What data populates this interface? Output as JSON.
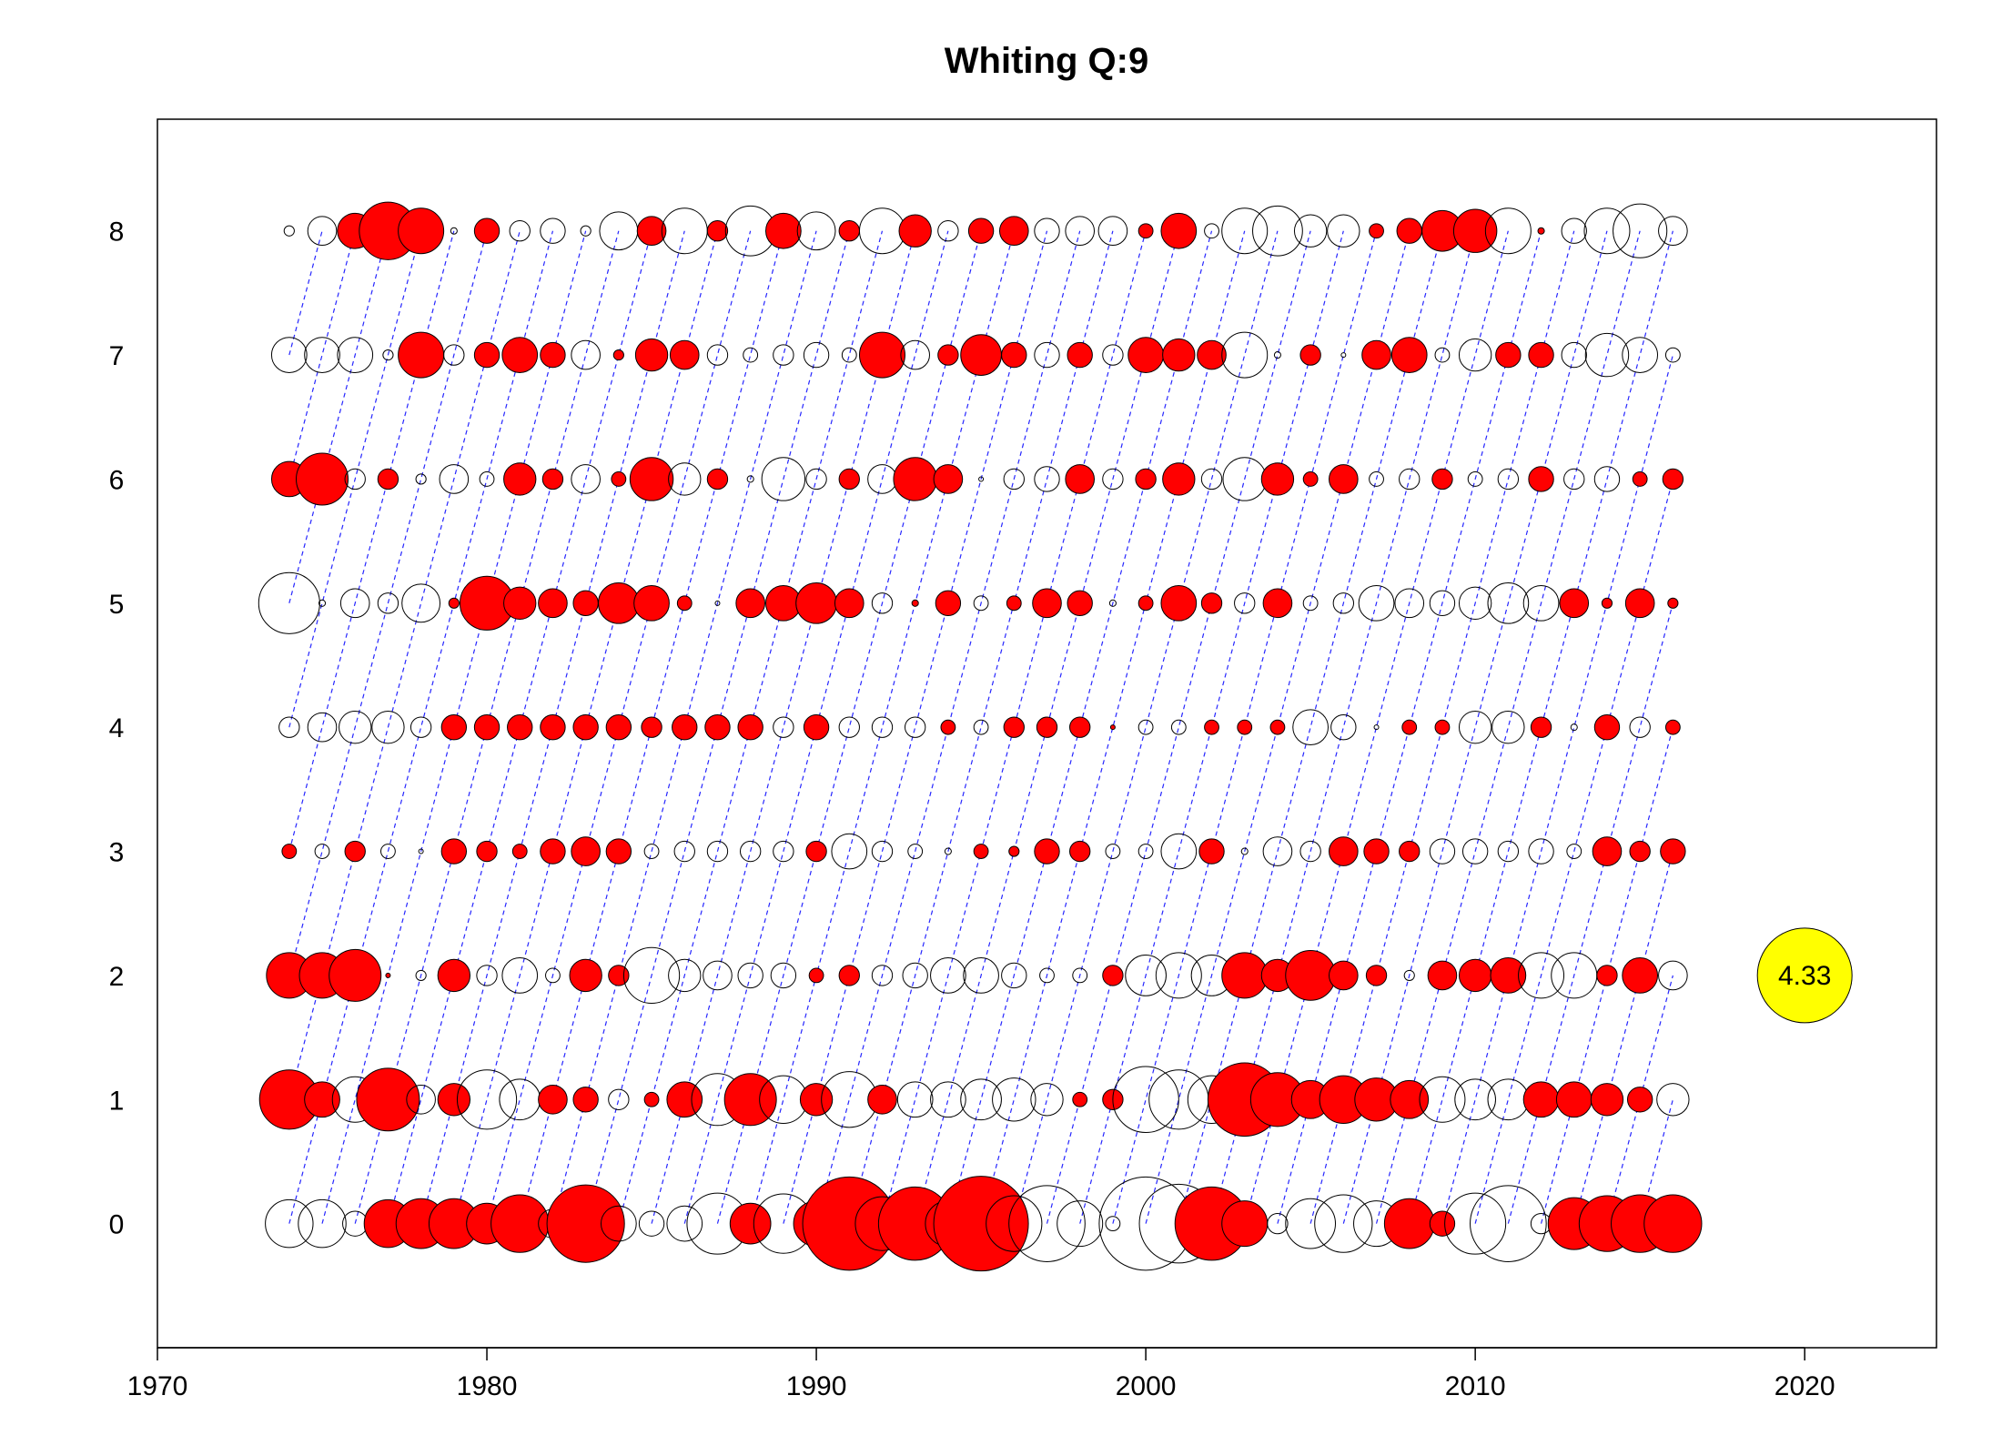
{
  "chart_data": {
    "type": "scatter",
    "subtype": "bubble",
    "title": "Whiting Q:9",
    "xlabel": "",
    "ylabel": "",
    "xlim": [
      1970,
      2024
    ],
    "ylim": [
      -1,
      8.9
    ],
    "x_ticks": [
      1970,
      1980,
      1990,
      2000,
      2010,
      2020
    ],
    "y_ticks": [
      0,
      1,
      2,
      3,
      4,
      5,
      6,
      7,
      8
    ],
    "years": [
      1974,
      1975,
      1976,
      1977,
      1978,
      1979,
      1980,
      1981,
      1982,
      1983,
      1984,
      1985,
      1986,
      1987,
      1988,
      1989,
      1990,
      1991,
      1992,
      1993,
      1994,
      1995,
      1996,
      1997,
      1998,
      1999,
      2000,
      2001,
      2002,
      2003,
      2004,
      2005,
      2006,
      2007,
      2008,
      2009,
      2010,
      2011,
      2012,
      2013,
      2014,
      2015,
      2016
    ],
    "ages": [
      0,
      1,
      2,
      3,
      4,
      5,
      6,
      7,
      8
    ],
    "encoding_note": "Positive residuals are drawn as filled red circles, negative residuals as open circles; circle area scales with absolute value.",
    "positive_color": "#ff0000",
    "negative_color": "#ffffff",
    "cohort_line_color": "#0000ff",
    "residuals": {
      "0": [
        -1.1,
        -1.1,
        -0.3,
        1.1,
        1.2,
        1.2,
        0.8,
        1.6,
        -0.4,
        2.9,
        -0.6,
        -0.3,
        -0.6,
        -1.8,
        0.8,
        -1.7,
        1.0,
        4.2,
        -1.4,
        2.6,
        -1.0,
        4.33,
        -1.5,
        -2.8,
        -1.0,
        -0.1,
        -4.2,
        -3.0,
        2.6,
        1.0,
        -0.2,
        -1.2,
        -1.6,
        -1.0,
        1.2,
        0.3,
        -1.8,
        -2.8,
        -0.2,
        1.3,
        1.5,
        1.6,
        1.6
      ],
      "1": [
        1.7,
        0.6,
        -1.0,
        1.9,
        -0.4,
        0.5,
        -1.7,
        -0.8,
        0.4,
        0.3,
        -0.2,
        0.1,
        0.6,
        -1.3,
        1.3,
        -1.1,
        0.5,
        -1.5,
        0.4,
        -0.6,
        -0.6,
        -0.8,
        -0.9,
        -0.5,
        0.1,
        0.2,
        -2.1,
        -1.7,
        -1.1,
        2.6,
        1.4,
        0.7,
        1.1,
        0.9,
        0.7,
        -1.0,
        -0.8,
        -0.8,
        0.6,
        0.6,
        0.5,
        0.3,
        -0.5
      ],
      "2": [
        1.0,
        1.0,
        1.3,
        0.01,
        -0.05,
        0.5,
        -0.2,
        -0.6,
        -0.1,
        0.5,
        0.2,
        -1.5,
        -0.5,
        -0.4,
        -0.3,
        -0.3,
        0.1,
        0.2,
        -0.2,
        -0.3,
        -0.6,
        -0.6,
        -0.3,
        -0.1,
        -0.1,
        0.2,
        -0.8,
        -1.0,
        -0.8,
        1.0,
        0.5,
        1.2,
        0.4,
        0.2,
        -0.05,
        0.4,
        0.5,
        0.6,
        -1.0,
        -1.0,
        0.2,
        0.6,
        -0.4
      ],
      "3": [
        0.1,
        -0.1,
        0.2,
        -0.1,
        -0.01,
        0.3,
        0.2,
        0.1,
        0.3,
        0.4,
        0.3,
        -0.1,
        -0.2,
        -0.2,
        -0.2,
        -0.2,
        0.2,
        -0.6,
        -0.2,
        -0.1,
        -0.02,
        0.1,
        0.05,
        0.3,
        0.2,
        -0.1,
        -0.1,
        -0.6,
        0.3,
        -0.02,
        -0.4,
        -0.2,
        0.4,
        0.3,
        0.2,
        -0.3,
        -0.3,
        -0.2,
        -0.3,
        -0.1,
        0.4,
        0.2,
        0.3
      ],
      "4": [
        -0.2,
        -0.4,
        -0.5,
        -0.5,
        -0.2,
        0.3,
        0.3,
        0.3,
        0.3,
        0.3,
        0.3,
        0.2,
        0.3,
        0.3,
        0.3,
        -0.2,
        0.3,
        -0.2,
        -0.2,
        -0.2,
        0.1,
        -0.1,
        0.2,
        0.2,
        0.2,
        0.01,
        -0.1,
        -0.1,
        0.1,
        0.1,
        0.1,
        -0.6,
        -0.3,
        -0.01,
        0.1,
        0.1,
        -0.5,
        -0.5,
        0.2,
        -0.02,
        0.3,
        -0.2,
        0.1
      ],
      "5": [
        -1.8,
        -0.02,
        -0.4,
        -0.2,
        -0.7,
        0.05,
        1.4,
        0.5,
        0.4,
        0.3,
        0.8,
        0.6,
        0.1,
        -0.01,
        0.4,
        0.6,
        0.8,
        0.4,
        -0.2,
        0.02,
        0.3,
        -0.1,
        0.1,
        0.4,
        0.3,
        -0.02,
        0.1,
        0.6,
        0.2,
        -0.2,
        0.4,
        -0.1,
        -0.2,
        -0.6,
        -0.4,
        -0.3,
        -0.5,
        -0.8,
        -0.6,
        0.4,
        0.05,
        0.4,
        0.05
      ],
      "6": [
        0.6,
        1.3,
        -0.2,
        0.2,
        -0.05,
        -0.4,
        -0.1,
        0.5,
        0.2,
        -0.4,
        0.1,
        0.9,
        -0.5,
        0.2,
        -0.02,
        -0.9,
        -0.2,
        0.2,
        -0.4,
        0.9,
        0.4,
        -0.01,
        -0.2,
        -0.3,
        0.4,
        -0.2,
        0.2,
        0.5,
        -0.2,
        -0.9,
        0.5,
        0.1,
        0.4,
        -0.1,
        -0.2,
        0.2,
        -0.1,
        -0.2,
        0.3,
        -0.2,
        -0.3,
        0.1,
        0.2
      ],
      "7": [
        -0.6,
        -0.6,
        -0.6,
        -0.05,
        1.0,
        -0.2,
        0.3,
        0.6,
        0.3,
        -0.4,
        0.05,
        0.5,
        0.4,
        -0.2,
        -0.1,
        -0.2,
        -0.3,
        -0.1,
        1.0,
        -0.4,
        0.2,
        0.8,
        0.3,
        -0.3,
        0.3,
        -0.2,
        0.6,
        0.5,
        0.4,
        -1.0,
        -0.02,
        0.2,
        -0.01,
        0.4,
        0.6,
        -0.1,
        -0.5,
        0.3,
        0.3,
        -0.3,
        -0.9,
        -0.6,
        -0.1
      ],
      "8": [
        -0.05,
        -0.4,
        0.6,
        1.6,
        1.0,
        -0.02,
        0.3,
        -0.2,
        -0.3,
        -0.05,
        -0.7,
        0.4,
        -1.0,
        0.2,
        -1.2,
        0.6,
        -0.7,
        0.2,
        -1.0,
        0.5,
        -0.2,
        0.3,
        0.4,
        -0.3,
        -0.4,
        -0.4,
        0.1,
        0.6,
        -0.1,
        -1.0,
        -1.2,
        -0.5,
        -0.5,
        0.1,
        0.3,
        0.8,
        0.9,
        -1.0,
        0.02,
        -0.3,
        -1.0,
        -1.4,
        -0.4
      ]
    },
    "max_bubble": {
      "label": "4.33",
      "x": 2020,
      "y": 2,
      "color": "#ffff00"
    }
  }
}
